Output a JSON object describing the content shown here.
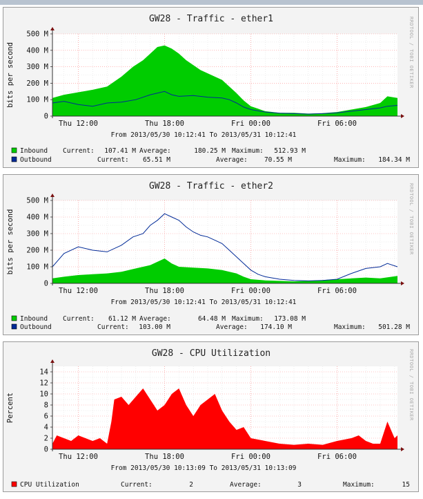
{
  "chart_data": [
    {
      "type": "area",
      "title": "GW28 - Traffic - ether1",
      "ylabel": "bits per second",
      "ylim": [
        0,
        500000000
      ],
      "yticks": [
        "0",
        "100 M",
        "200 M",
        "300 M",
        "400 M",
        "500 M"
      ],
      "xticks": [
        "Thu 12:00",
        "Thu 18:00",
        "Fri 00:00",
        "Fri 06:00"
      ],
      "xlim_hours": [
        10.2,
        34.2
      ],
      "xtick_hours": [
        12,
        18,
        24,
        30
      ],
      "side_text": "RRDTOOL / TOBI OETIKER",
      "range_text": "From 2013/05/30 10:12:41 To 2013/05/31 10:12:41",
      "grid": true,
      "series": [
        {
          "name": "Inbound",
          "color": "#00cc00",
          "style": "area",
          "x_hours": [
            10.2,
            11,
            12,
            13,
            14,
            15,
            15.8,
            16.5,
            17,
            17.5,
            18,
            18.5,
            19,
            19.5,
            20,
            20.5,
            21,
            21.5,
            22,
            22.5,
            23,
            23.5,
            24,
            24.5,
            25,
            26,
            27,
            28,
            29,
            30,
            31,
            32,
            33,
            33.5,
            34.2
          ],
          "values": [
            110,
            130,
            145,
            160,
            180,
            240,
            300,
            340,
            380,
            420,
            430,
            410,
            380,
            340,
            310,
            280,
            260,
            240,
            220,
            180,
            140,
            95,
            60,
            45,
            30,
            20,
            20,
            15,
            18,
            25,
            40,
            55,
            80,
            120,
            110
          ],
          "current": "107.41 M",
          "average": "180.25 M",
          "maximum": "512.93 M"
        },
        {
          "name": "Outbound",
          "color": "#002a97",
          "style": "line",
          "x_hours": [
            10.2,
            11,
            12,
            13,
            14,
            15,
            16,
            17,
            18,
            18.5,
            19,
            20,
            21,
            22,
            22.5,
            23,
            23.5,
            24,
            25,
            26,
            27,
            28,
            29,
            30,
            31,
            32,
            33,
            33.5,
            34.2
          ],
          "values": [
            80,
            90,
            70,
            60,
            80,
            85,
            100,
            130,
            150,
            130,
            120,
            125,
            115,
            110,
            100,
            80,
            55,
            40,
            25,
            18,
            15,
            12,
            15,
            20,
            30,
            40,
            50,
            60,
            65
          ],
          "current": "65.51 M",
          "average": "70.55 M",
          "maximum": "184.34 M"
        }
      ]
    },
    {
      "type": "area",
      "title": "GW28 - Traffic - ether2",
      "ylabel": "bits per second",
      "ylim": [
        0,
        500000000
      ],
      "yticks": [
        "0",
        "100 M",
        "200 M",
        "300 M",
        "400 M",
        "500 M"
      ],
      "xticks": [
        "Thu 12:00",
        "Thu 18:00",
        "Fri 00:00",
        "Fri 06:00"
      ],
      "xlim_hours": [
        10.2,
        34.2
      ],
      "xtick_hours": [
        12,
        18,
        24,
        30
      ],
      "side_text": "RRDTOOL / TOBI OETIKER",
      "range_text": "From 2013/05/30 10:12:41 To 2013/05/31 10:12:41",
      "grid": true,
      "series": [
        {
          "name": "Inbound",
          "color": "#00cc00",
          "style": "area",
          "x_hours": [
            10.2,
            11,
            12,
            13,
            14,
            15,
            16,
            17,
            18,
            18.5,
            19,
            20,
            21,
            22,
            23,
            23.5,
            24,
            25,
            26,
            27,
            28,
            29,
            30,
            31,
            32,
            33,
            34.2
          ],
          "values": [
            30,
            40,
            50,
            55,
            60,
            70,
            90,
            110,
            150,
            120,
            100,
            95,
            90,
            80,
            60,
            40,
            25,
            18,
            15,
            12,
            15,
            20,
            25,
            30,
            35,
            30,
            45
          ],
          "current": "61.12 M",
          "average": "64.48 M",
          "maximum": "173.08 M"
        },
        {
          "name": "Outbound",
          "color": "#002a97",
          "style": "line",
          "x_hours": [
            10.2,
            11,
            12,
            13,
            14,
            15,
            15.8,
            16.5,
            17,
            17.5,
            18,
            18.5,
            19,
            19.5,
            20,
            20.5,
            21,
            21.5,
            22,
            22.5,
            23,
            23.5,
            24,
            24.5,
            25,
            26,
            27,
            28,
            29,
            30,
            31,
            32,
            33,
            33.5,
            34.2
          ],
          "values": [
            100,
            180,
            220,
            200,
            190,
            230,
            280,
            300,
            350,
            380,
            420,
            400,
            380,
            340,
            310,
            290,
            280,
            260,
            240,
            200,
            160,
            120,
            80,
            55,
            40,
            25,
            18,
            15,
            18,
            25,
            60,
            90,
            100,
            120,
            100
          ],
          "current": "103.00 M",
          "average": "174.10 M",
          "maximum": "501.28 M"
        }
      ]
    },
    {
      "type": "area",
      "title": "GW28 - CPU Utilization",
      "ylabel": "Percent",
      "ylim": [
        0,
        15
      ],
      "yticks": [
        "0",
        "2",
        "4",
        "6",
        "8",
        "10",
        "12",
        "14"
      ],
      "xticks": [
        "Thu 12:00",
        "Thu 18:00",
        "Fri 00:00",
        "Fri 06:00"
      ],
      "xlim_hours": [
        10.2,
        34.2
      ],
      "xtick_hours": [
        12,
        18,
        24,
        30
      ],
      "side_text": "RRDTOOL / TOBI OETIKER",
      "range_text": "From 2013/05/30 10:13:09 To 2013/05/31 10:13:09",
      "grid": true,
      "series": [
        {
          "name": "CPU Utilization",
          "color": "#ff0000",
          "style": "area",
          "x_hours": [
            10.2,
            10.5,
            11,
            11.5,
            12,
            12.5,
            13,
            13.5,
            14,
            14.3,
            14.5,
            15,
            15.5,
            16,
            16.5,
            17,
            17.5,
            18,
            18.5,
            19,
            19.5,
            20,
            20.5,
            21,
            21.5,
            22,
            22.5,
            23,
            23.5,
            24,
            25,
            26,
            27,
            28,
            29,
            30,
            31,
            31.5,
            32,
            32.5,
            33,
            33.5,
            34,
            34.2
          ],
          "values": [
            1,
            2.5,
            2,
            1.5,
            2.5,
            2,
            1.5,
            2,
            1,
            5,
            9,
            9.5,
            8,
            9.5,
            11,
            9,
            7,
            8,
            10,
            11,
            8,
            6,
            8,
            9,
            10,
            7,
            5,
            3.5,
            4,
            2,
            1.5,
            1,
            0.8,
            1,
            0.8,
            1.5,
            2,
            2.5,
            1.5,
            1,
            1,
            5,
            2,
            2.5
          ],
          "current": "2",
          "average": "3",
          "maximum": "15"
        }
      ]
    }
  ],
  "legend_labels": {
    "current": "Current:",
    "average": "Average:",
    "maximum": "Maximum:"
  }
}
